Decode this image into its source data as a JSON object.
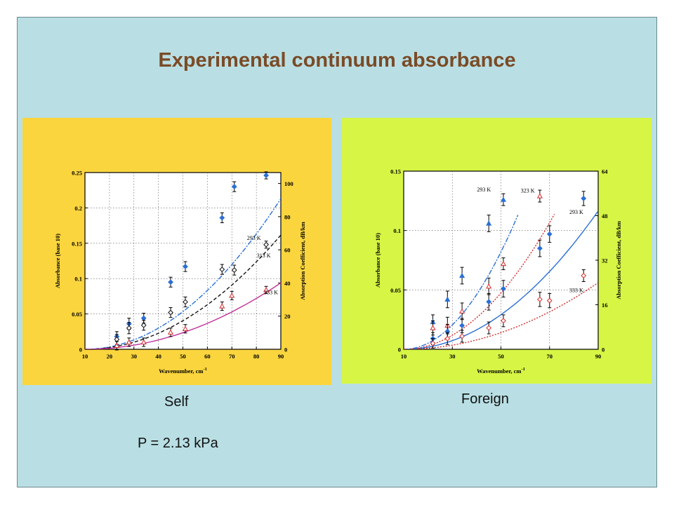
{
  "slide": {
    "title": "Experimental continuum absorbance",
    "captions": {
      "self": "Self",
      "foreign": "Foreign",
      "pressure": "P = 2.13 kPa"
    }
  },
  "colors": {
    "slide_bg": "#b9dfe4",
    "title": "#7a4b27",
    "self_panel": "#fad53e",
    "foreign_panel": "#d6f545",
    "blue": "#2a6fd6",
    "black": "#111111",
    "red": "#d42a2a"
  },
  "chart_data": [
    {
      "type": "scatter",
      "panel": "self",
      "xlabel": "Wavenumber, cm",
      "xlabel_sup": "-1",
      "ylabel": "Absorbance (base 10)",
      "y2label": "Absorption Coefficient, dB/km",
      "xlim": [
        10,
        90
      ],
      "ylim": [
        0,
        0.25
      ],
      "y2lim": [
        0,
        106.6
      ],
      "xticks": [
        10,
        20,
        30,
        40,
        50,
        60,
        70,
        80,
        90
      ],
      "yticks": [
        0,
        0.05,
        0.1,
        0.15,
        0.2,
        0.25
      ],
      "ytick_labels": [
        "0",
        "0.05",
        "0.1",
        "0.15",
        "0.2",
        "0.25"
      ],
      "y2ticks": [
        0,
        20,
        40,
        60,
        80,
        100
      ],
      "grid": true,
      "series": [
        {
          "name": "293 K",
          "color": "#2a6fd6",
          "marker": "diamond",
          "filled": true,
          "line": "dashdot",
          "x": [
            23,
            28,
            34,
            45,
            51,
            66,
            71,
            84
          ],
          "y": [
            0.018,
            0.036,
            0.044,
            0.095,
            0.117,
            0.186,
            0.23,
            0.246
          ],
          "err": [
            0.007,
            0.008,
            0.007,
            0.007,
            0.007,
            0.007,
            0.007,
            0.005
          ],
          "fit": {
            "a": 3.33e-05,
            "p": 2.0,
            "xmin": 10,
            "xmax": 90
          },
          "label_at": [
            79,
            0.155
          ]
        },
        {
          "name": "313 K",
          "color": "#111111",
          "marker": "diamond",
          "filled": false,
          "line": "dashed",
          "x": [
            23,
            28,
            34,
            45,
            51,
            66,
            71,
            84
          ],
          "y": [
            0.014,
            0.03,
            0.034,
            0.052,
            0.067,
            0.113,
            0.112,
            0.148
          ],
          "err": [
            0.007,
            0.008,
            0.007,
            0.007,
            0.007,
            0.007,
            0.007,
            0.005
          ],
          "fit": {
            "a": 2.525e-05,
            "p": 2.0,
            "xmin": 10,
            "xmax": 90
          },
          "label_at": [
            83,
            0.13
          ]
        },
        {
          "name": "333 K",
          "color": "#d42a2a",
          "marker": "triangle",
          "filled": false,
          "line": "solid",
          "x": [
            23,
            28,
            34,
            45,
            51,
            66,
            70,
            84
          ],
          "y": [
            0.005,
            0.01,
            0.01,
            0.024,
            0.029,
            0.061,
            0.076,
            0.084
          ],
          "err": [
            0.006,
            0.006,
            0.006,
            0.006,
            0.006,
            0.006,
            0.006,
            0.005
          ],
          "fit": {
            "a": 1.469e-05,
            "p": 2.0,
            "xmin": 10,
            "xmax": 90,
            "color": "#c0309a"
          },
          "label_at": [
            86,
            0.078
          ]
        }
      ]
    },
    {
      "type": "scatter",
      "panel": "foreign",
      "xlabel": "Wavenumber, cm",
      "xlabel_sup": "-1",
      "ylabel": "Absorbance (base 10)",
      "y2label": "Absorption Coefficient, dB/km",
      "xlim": [
        10,
        90
      ],
      "ylim": [
        0,
        0.15
      ],
      "y2lim": [
        0,
        64
      ],
      "xticks": [
        10,
        30,
        50,
        70,
        90
      ],
      "yticks": [
        0,
        0.05,
        0.1,
        0.15
      ],
      "ytick_labels": [
        "0",
        "0.05",
        "0.1",
        "0.15"
      ],
      "y2ticks": [
        0,
        16,
        32,
        48,
        64
      ],
      "grid": true,
      "series": [
        {
          "name": "293 K",
          "color": "#2a6fd6",
          "marker": "triangle",
          "filled": true,
          "line": "dashdot",
          "x": [
            22,
            28,
            34,
            45,
            51
          ],
          "y": [
            0.023,
            0.042,
            0.062,
            0.106,
            0.126
          ],
          "err": [
            0.006,
            0.007,
            0.007,
            0.007,
            0.005
          ],
          "fit": {
            "a": 5.12e-05,
            "p": 2.0,
            "xmin": 10,
            "xmax": 57
          },
          "label_at": [
            43,
            0.133
          ]
        },
        {
          "name": "323 K",
          "color": "#d42a2a",
          "marker": "triangle",
          "filled": false,
          "line": "dotted",
          "x": [
            22,
            28,
            34,
            45,
            51,
            66
          ],
          "y": [
            0.018,
            0.02,
            0.032,
            0.053,
            0.072,
            0.129
          ],
          "err": [
            0.006,
            0.007,
            0.007,
            0.007,
            0.005,
            0.005
          ],
          "fit": {
            "a": 2.96e-05,
            "p": 2.0,
            "xmin": 10,
            "xmax": 72
          },
          "label_at": [
            61,
            0.132
          ]
        },
        {
          "name": "293 K",
          "color": "#2a6fd6",
          "marker": "diamond",
          "filled": true,
          "line": "solid",
          "x": [
            22,
            28,
            34,
            45,
            51,
            66,
            70,
            84
          ],
          "y": [
            0.009,
            0.015,
            0.02,
            0.04,
            0.051,
            0.085,
            0.097,
            0.127
          ],
          "err": [
            0.005,
            0.006,
            0.006,
            0.007,
            0.007,
            0.007,
            0.007,
            0.006
          ],
          "fit": {
            "a": 1.82e-05,
            "p": 2.0,
            "xmin": 10,
            "xmax": 90
          },
          "label_at": [
            81,
            0.114
          ]
        },
        {
          "name": "333 K",
          "color": "#d42a2a",
          "marker": "diamond",
          "filled": false,
          "line": "dotted",
          "x": [
            22,
            28,
            34,
            45,
            51,
            66,
            70,
            84
          ],
          "y": [
            0.005,
            0.009,
            0.011,
            0.018,
            0.024,
            0.042,
            0.041,
            0.062
          ],
          "err": [
            0.004,
            0.005,
            0.005,
            0.005,
            0.005,
            0.006,
            0.006,
            0.005
          ],
          "fit": {
            "a": 8.76e-06,
            "p": 2.0,
            "xmin": 10,
            "xmax": 90
          },
          "label_at": [
            81,
            0.048
          ]
        }
      ]
    }
  ]
}
